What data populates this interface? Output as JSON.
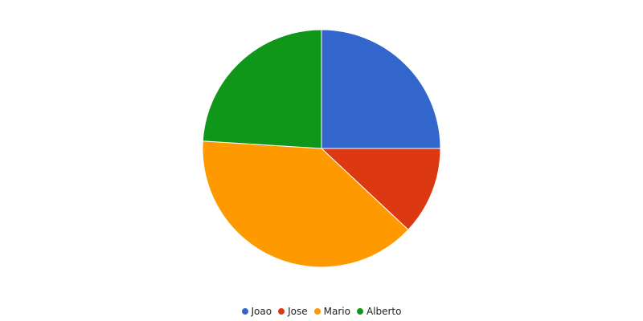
{
  "chart_data": {
    "type": "pie",
    "categories": [
      "Joao",
      "Jose",
      "Mario",
      "Alberto"
    ],
    "values": [
      25,
      12,
      39,
      24
    ],
    "colors": [
      "#3366cc",
      "#dc3912",
      "#ff9900",
      "#109618"
    ],
    "title": "",
    "legend_position": "bottom",
    "start_angle": "12 o'clock, clockwise"
  }
}
